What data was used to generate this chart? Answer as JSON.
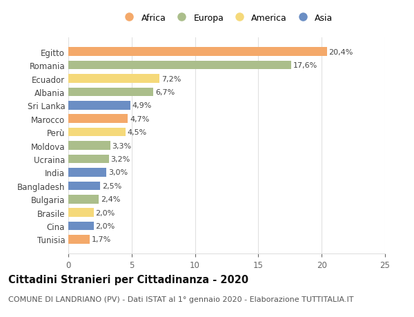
{
  "countries": [
    "Egitto",
    "Romania",
    "Ecuador",
    "Albania",
    "Sri Lanka",
    "Marocco",
    "Perù",
    "Moldova",
    "Ucraina",
    "India",
    "Bangladesh",
    "Bulgaria",
    "Brasile",
    "Cina",
    "Tunisia"
  ],
  "values": [
    20.4,
    17.6,
    7.2,
    6.7,
    4.9,
    4.7,
    4.5,
    3.3,
    3.2,
    3.0,
    2.5,
    2.4,
    2.0,
    2.0,
    1.7
  ],
  "continents": [
    "Africa",
    "Europa",
    "America",
    "Europa",
    "Asia",
    "Africa",
    "America",
    "Europa",
    "Europa",
    "Asia",
    "Asia",
    "Europa",
    "America",
    "Asia",
    "Africa"
  ],
  "labels": [
    "20,4%",
    "17,6%",
    "7,2%",
    "6,7%",
    "4,9%",
    "4,7%",
    "4,5%",
    "3,3%",
    "3,2%",
    "3,0%",
    "2,5%",
    "2,4%",
    "2,0%",
    "2,0%",
    "1,7%"
  ],
  "colors": {
    "Africa": "#F4A96A",
    "Europa": "#ABBE8B",
    "America": "#F5D97A",
    "Asia": "#6B8EC4"
  },
  "legend_order": [
    "Africa",
    "Europa",
    "America",
    "Asia"
  ],
  "title": "Cittadini Stranieri per Cittadinanza - 2020",
  "subtitle": "COMUNE DI LANDRIANO (PV) - Dati ISTAT al 1° gennaio 2020 - Elaborazione TUTTITALIA.IT",
  "xlim": [
    0,
    25
  ],
  "xticks": [
    0,
    5,
    10,
    15,
    20,
    25
  ],
  "background_color": "#FFFFFF",
  "bar_height": 0.65,
  "title_fontsize": 10.5,
  "subtitle_fontsize": 8,
  "tick_label_fontsize": 8.5,
  "value_label_fontsize": 8,
  "legend_fontsize": 9,
  "grid_color": "#E0E0E0"
}
